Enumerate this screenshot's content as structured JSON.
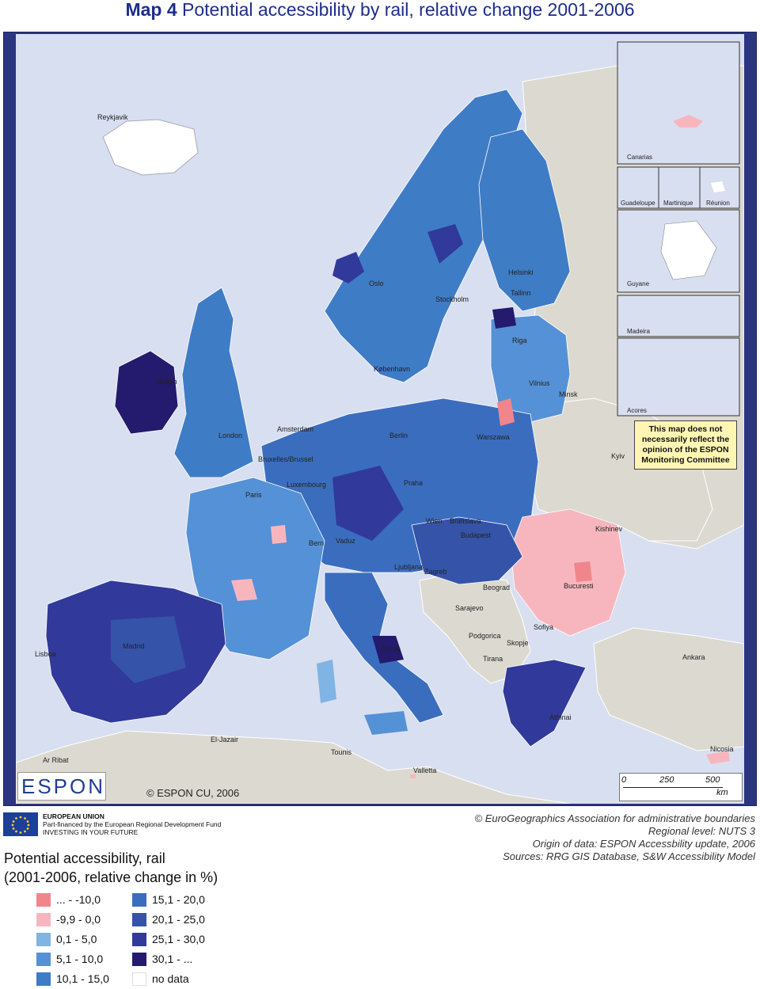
{
  "title": {
    "bold": "Map 4",
    "rest": " Potential accessibility by rail, relative change 2001-2006"
  },
  "disclaimer": "This map does not necessarily reflect the opinion of the ESPON Monitoring Committee",
  "logo_text": "ESPON",
  "copyright_espon": "© ESPON CU, 2006",
  "eu_funding": {
    "line1": "EUROPEAN UNION",
    "line2": "Part-financed by the European Regional Development Fund",
    "line3": "INVESTING IN YOUR FUTURE"
  },
  "legend": {
    "title_line1": "Potential accessibility, rail",
    "title_line2": "(2001-2006, relative change in %)",
    "classes": [
      {
        "label": "... - -10,0",
        "color": "#f0868c"
      },
      {
        "label": "-9,9 - 0,0",
        "color": "#f7b6be"
      },
      {
        "label": "0,1 - 5,0",
        "color": "#7fb4e4"
      },
      {
        "label": "5,1 - 10,0",
        "color": "#5591d6"
      },
      {
        "label": "10,1 - 15,0",
        "color": "#3f7cc6"
      },
      {
        "label": "15,1 - 20,0",
        "color": "#3b6dbf"
      },
      {
        "label": "20,1 - 25,0",
        "color": "#3553a8"
      },
      {
        "label": "25,1 - 30,0",
        "color": "#31399a"
      },
      {
        "label": "30,1 - ...",
        "color": "#241a6e"
      },
      {
        "label": "no data",
        "color": "#ffffff"
      }
    ]
  },
  "scale_bar": {
    "ticks": [
      "0",
      "250",
      "500"
    ],
    "unit": "km"
  },
  "credits": {
    "line1": "© EuroGeographics Association for administrative boundaries",
    "line2": "Regional level:  NUTS 3",
    "line3": "Origin of data:  ESPON Accessbility update, 2006",
    "line4": "Sources:  RRG GIS Database, S&W Accessibility Model"
  },
  "insets": [
    "Canarias",
    "Guadeloupe",
    "Martinique",
    "Réunion",
    "Guyane",
    "Madeira",
    "Acores"
  ],
  "cities": [
    "Reykjavik",
    "Oslo",
    "Stockholm",
    "Helsinki",
    "Tallinn",
    "Riga",
    "København",
    "Dublin",
    "Vilnius",
    "Minsk",
    "London",
    "Amsterdam",
    "Berlin",
    "Warszawa",
    "Kyiv",
    "Bruxelles/Brussel",
    "Luxembourg",
    "Praha",
    "Paris",
    "Wien",
    "Bratislava",
    "Kishinev",
    "Bern",
    "Vaduz",
    "Budapest",
    "Ljubljana",
    "Zagreb",
    "Beograd",
    "Bucuresti",
    "Sarajevo",
    "Sofiya",
    "Lisboa",
    "Madrid",
    "Roma",
    "Podgorica",
    "Skopje",
    "Tirana",
    "Ankara",
    "Athinai",
    "Ar Ribat",
    "El-Jazair",
    "Tounis",
    "Valletta",
    "Nicosia"
  ],
  "colors": {
    "sea": "#d8dff0",
    "land_nonstudy": "#dcdad0",
    "border_frame": "#2c3580",
    "disclaimer_bg": "#fff6b4"
  }
}
